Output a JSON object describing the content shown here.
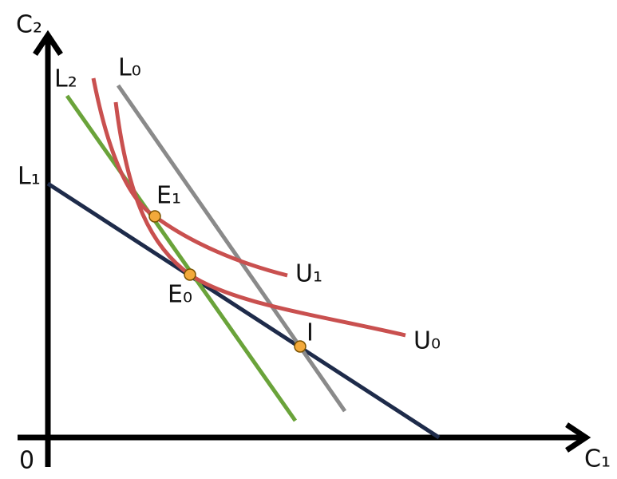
{
  "axes": {
    "y_label": "C₂",
    "x_label": "C₁",
    "origin": "0"
  },
  "lines": [
    {
      "label": "L₀"
    },
    {
      "label": "L₁"
    },
    {
      "label": "L₂"
    }
  ],
  "curves": [
    {
      "label": "U₀"
    },
    {
      "label": "U₁"
    }
  ],
  "points": [
    {
      "label": "E₀"
    },
    {
      "label": "E₁"
    },
    {
      "label": "I"
    }
  ]
}
